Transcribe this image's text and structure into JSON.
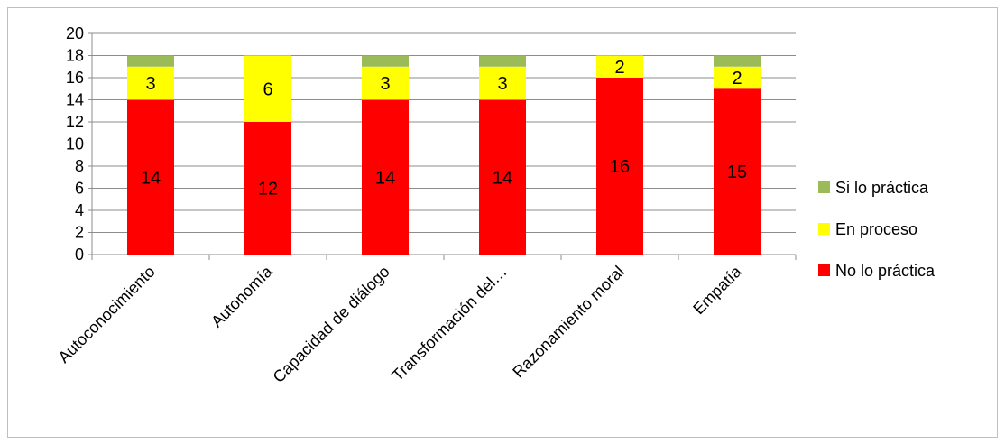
{
  "chart_data": {
    "type": "bar",
    "stacked": true,
    "title": "",
    "xlabel": "",
    "ylabel": "",
    "ylim": [
      0,
      20
    ],
    "ytick_step": 2,
    "yticks": [
      "0",
      "2",
      "4",
      "6",
      "8",
      "10",
      "12",
      "14",
      "16",
      "18",
      "20"
    ],
    "grid": true,
    "legend_position": "right",
    "categories": [
      "Autoconocimiento",
      "Autonomía",
      "Capacidad de diálogo",
      "Transformación del…",
      "Razonamiento moral",
      "Empatía"
    ],
    "series": [
      {
        "name": "No lo práctica",
        "color": "#ff0000",
        "values": [
          14,
          12,
          14,
          14,
          16,
          15
        ],
        "labels": [
          "14",
          "12",
          "14",
          "14",
          "16",
          "15"
        ]
      },
      {
        "name": "En proceso",
        "color": "#ffff00",
        "values": [
          3,
          6,
          3,
          3,
          2,
          2
        ],
        "labels": [
          "3",
          "6",
          "3",
          "3",
          "2",
          "2"
        ]
      },
      {
        "name": "Si lo práctica",
        "color": "#9bbb59",
        "values": [
          1,
          0,
          1,
          1,
          0,
          1
        ],
        "labels": [
          "",
          "",
          "",
          "",
          "",
          ""
        ]
      }
    ],
    "legend_order": [
      "Si lo práctica",
      "En proceso",
      "No lo práctica"
    ]
  }
}
